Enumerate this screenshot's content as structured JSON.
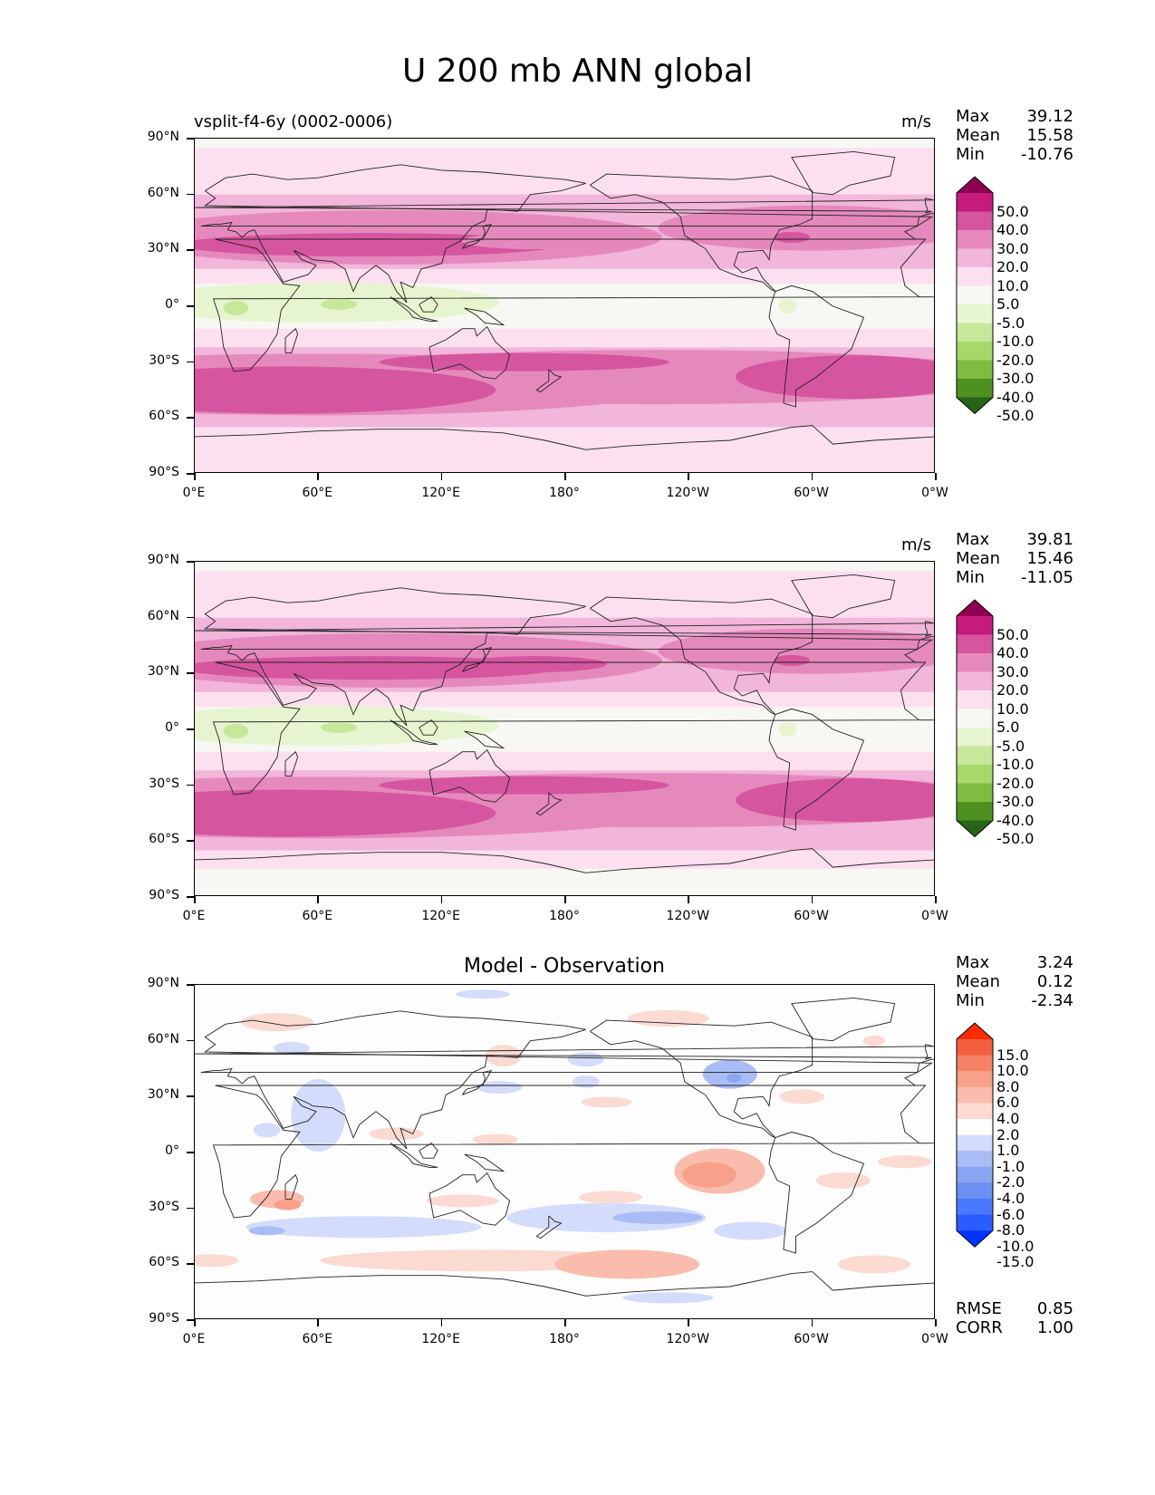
{
  "title": "U 200 mb ANN global",
  "x_ticks": [
    "0°E",
    "60°E",
    "120°E",
    "180°",
    "120°W",
    "60°W",
    "0°W"
  ],
  "y_ticks": [
    "90°N",
    "60°N",
    "30°N",
    "0°",
    "30°S",
    "60°S",
    "90°S"
  ],
  "colors": {
    "div_levels": [
      "#276419",
      "#4d9221",
      "#7fbc41",
      "#a6d96a",
      "#c7e89b",
      "#e6f5d0",
      "#f7f7f4",
      "#fde0ef",
      "#f1b6da",
      "#e589bd",
      "#d6559f",
      "#c51b7d",
      "#8e0152"
    ],
    "diff_levels": [
      "#0033ff",
      "#2a5cff",
      "#4a78ff",
      "#6b8ff2",
      "#8aa6f2",
      "#aabcf5",
      "#d3dcfa",
      "#fdfdfd",
      "#fbdad2",
      "#f9bcad",
      "#f7a08a",
      "#f58266",
      "#f35f3f",
      "#ff2a00"
    ]
  },
  "panels": [
    {
      "subtitle_left": "vsplit-f4-6y (0002-0006)",
      "title": "",
      "units": "m/s",
      "stats": {
        "max_label": "Max",
        "max": "39.12",
        "mean_label": "Mean",
        "mean": "15.58",
        "min_label": "Min",
        "min": "-10.76"
      },
      "colorbar_labels": [
        "50.0",
        "40.0",
        "30.0",
        "20.0",
        "10.0",
        "5.0",
        "-5.0",
        "-10.0",
        "-20.0",
        "-30.0",
        "-40.0",
        "-50.0"
      ]
    },
    {
      "subtitle_left": "",
      "title": "",
      "units": "m/s",
      "stats": {
        "max_label": "Max",
        "max": "39.81",
        "mean_label": "Mean",
        "mean": "15.46",
        "min_label": "Min",
        "min": "-11.05"
      },
      "colorbar_labels": [
        "50.0",
        "40.0",
        "30.0",
        "20.0",
        "10.0",
        "5.0",
        "-5.0",
        "-10.0",
        "-20.0",
        "-30.0",
        "-40.0",
        "-50.0"
      ]
    },
    {
      "subtitle_left": "",
      "title": "Model - Observation",
      "units": "",
      "stats": {
        "max_label": "Max",
        "max": "3.24",
        "mean_label": "Mean",
        "mean": "0.12",
        "min_label": "Min",
        "min": "-2.34"
      },
      "colorbar_labels": [
        "15.0",
        "10.0",
        "8.0",
        "6.0",
        "4.0",
        "2.0",
        "1.0",
        "-1.0",
        "-2.0",
        "-4.0",
        "-6.0",
        "-8.0",
        "-10.0",
        "-15.0"
      ],
      "footer": {
        "rmse_label": "RMSE",
        "rmse": "0.85",
        "corr_label": "CORR",
        "corr": "1.00"
      }
    }
  ]
}
